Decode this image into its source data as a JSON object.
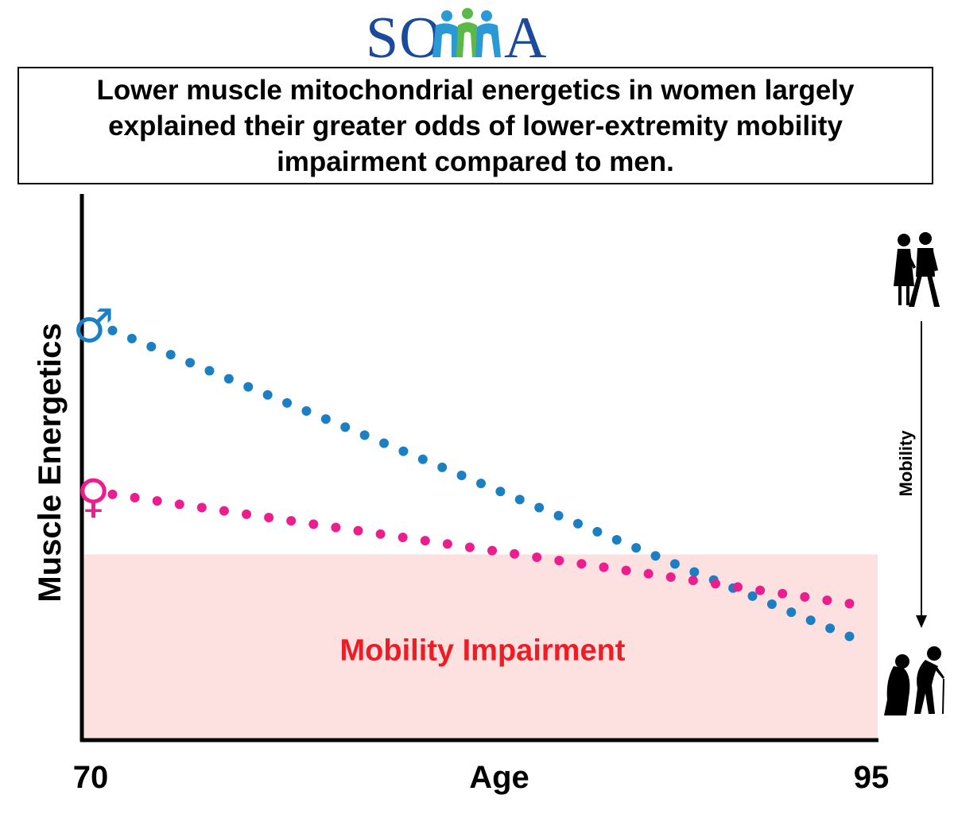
{
  "logo": {
    "text": "SOMMA",
    "text_color": "#1a4a9c",
    "figure_colors": [
      "#2a9ad6",
      "#5bb947"
    ]
  },
  "headline": "Lower muscle mitochondrial energetics in women largely explained their greater odds of lower-extremity mobility impairment compared to men.",
  "chart_data": {
    "type": "line",
    "title": "",
    "xlabel": "Age",
    "ylabel": "Muscle Energetics",
    "x_tick_labels": [
      "70",
      "95"
    ],
    "xlim": [
      70,
      95
    ],
    "ylim": [
      0,
      1
    ],
    "grid": false,
    "line_style": "dotted",
    "series": [
      {
        "name": "Men",
        "symbol": "♂",
        "color": "#1b7fc4",
        "x": [
          70.7,
          94.3
        ],
        "values": [
          0.75,
          0.19
        ]
      },
      {
        "name": "Women",
        "symbol": "♀",
        "color": "#ec1e8f",
        "x": [
          70.7,
          94.3
        ],
        "values": [
          0.45,
          0.25
        ]
      }
    ],
    "region": {
      "label": "Mobility Impairment",
      "y_from": 0,
      "y_to": 0.34,
      "fill": "#fde0e0",
      "label_color": "#ee1c24"
    },
    "side_indicator": {
      "label": "Mobility",
      "top": "walking couple",
      "bottom": "couple with cane"
    }
  }
}
